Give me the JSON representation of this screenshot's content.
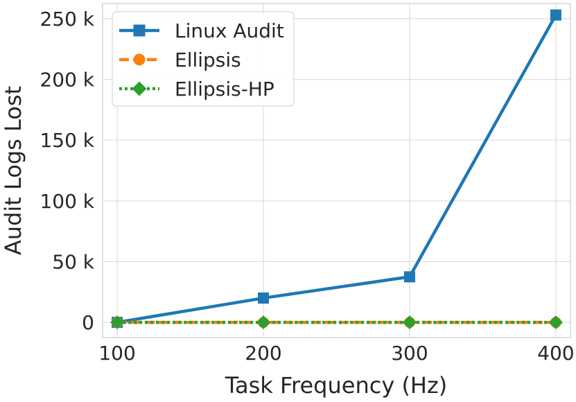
{
  "chart_data": {
    "type": "line",
    "title": "",
    "xlabel": "Task Frequency (Hz)",
    "ylabel": "Audit Logs Lost",
    "x": [
      100,
      200,
      300,
      400
    ],
    "x_tick_labels": [
      "100",
      "200",
      "300",
      "400"
    ],
    "xlim": [
      90,
      410
    ],
    "ylim": [
      -12500,
      262500
    ],
    "y_ticks": [
      0,
      50000,
      100000,
      150000,
      200000,
      250000
    ],
    "y_tick_labels": [
      "0",
      "50 k",
      "100 k",
      "150 k",
      "200 k",
      "250 k"
    ],
    "grid": true,
    "legend_position": "top-left",
    "series": [
      {
        "name": "Linux Audit",
        "values": [
          0,
          20000,
          37500,
          253000
        ],
        "color": "#1f77b4",
        "marker": "square",
        "line_style": "solid"
      },
      {
        "name": "Ellipsis",
        "values": [
          0,
          0,
          0,
          0
        ],
        "color": "#ff7f0e",
        "marker": "circle",
        "line_style": "dashed"
      },
      {
        "name": "Ellipsis-HP",
        "values": [
          0,
          0,
          0,
          0
        ],
        "color": "#2ca02c",
        "marker": "diamond",
        "line_style": "dotted"
      }
    ]
  }
}
